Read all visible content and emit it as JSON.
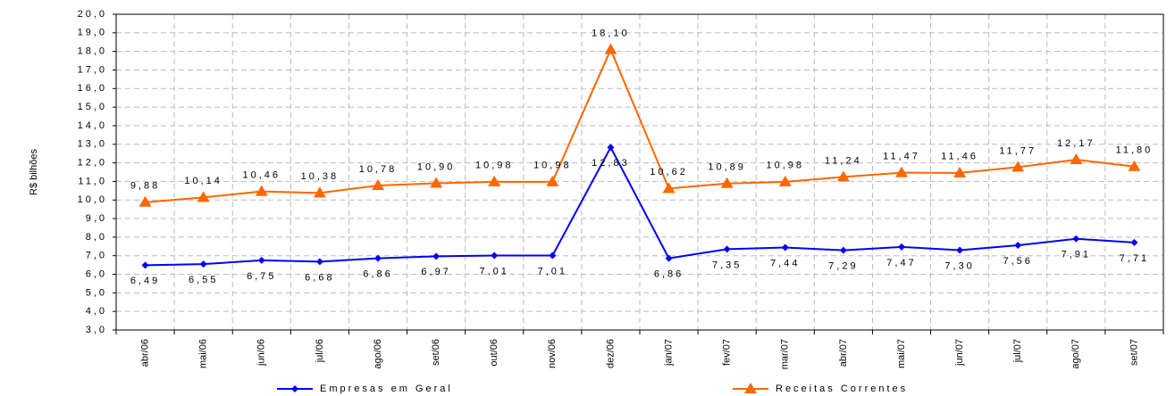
{
  "chart_data": {
    "type": "line",
    "y_label": "R$ bilhões",
    "categories": [
      "abr/06",
      "mai/06",
      "jun/06",
      "jul/06",
      "ago/06",
      "set/06",
      "out/06",
      "nov/06",
      "dez/06",
      "jan/07",
      "fev/07",
      "mar/07",
      "abr/07",
      "mai/07",
      "jun/07",
      "jul/07",
      "ago/07",
      "set/07"
    ],
    "series": [
      {
        "name": "Empresas em Geral",
        "color": "#0000ff",
        "marker": "diamond",
        "values": [
          6.49,
          6.55,
          6.75,
          6.68,
          6.86,
          6.97,
          7.01,
          7.01,
          12.83,
          6.86,
          7.35,
          7.44,
          7.29,
          7.47,
          7.3,
          7.56,
          7.91,
          7.71
        ],
        "value_labels": [
          "6,49",
          "6,55",
          "6,75",
          "6,68",
          "6,86",
          "6,97",
          "7,01",
          "7,01",
          "12,83",
          "6,86",
          "7,35",
          "7,44",
          "7,29",
          "7,47",
          "7,30",
          "7,56",
          "7,91",
          "7,71"
        ]
      },
      {
        "name": "Receitas Correntes",
        "color": "#ff6600",
        "marker": "triangle",
        "values": [
          9.88,
          10.14,
          10.46,
          10.38,
          10.78,
          10.9,
          10.98,
          10.98,
          18.1,
          10.62,
          10.89,
          10.98,
          11.24,
          11.47,
          11.46,
          11.77,
          12.17,
          11.8
        ],
        "value_labels": [
          "9,88",
          "10,14",
          "10,46",
          "10,38",
          "10,78",
          "10,90",
          "10,98",
          "10,98",
          "18,10",
          "10,62",
          "10,89",
          "10,98",
          "11,24",
          "11,47",
          "11,46",
          "11,77",
          "12,17",
          "11,80"
        ]
      }
    ],
    "ylim": [
      3,
      20
    ],
    "yticks": [
      {
        "value": 3,
        "label": "3,0"
      },
      {
        "value": 4,
        "label": "4,0"
      },
      {
        "value": 5,
        "label": "5,0"
      },
      {
        "value": 6,
        "label": "6,0"
      },
      {
        "value": 7,
        "label": "7,0"
      },
      {
        "value": 8,
        "label": "8,0"
      },
      {
        "value": 9,
        "label": "9,0"
      },
      {
        "value": 10,
        "label": "10,0"
      },
      {
        "value": 11,
        "label": "11,0"
      },
      {
        "value": 12,
        "label": "12,0"
      },
      {
        "value": 13,
        "label": "13,0"
      },
      {
        "value": 14,
        "label": "14,0"
      },
      {
        "value": 15,
        "label": "15,0"
      },
      {
        "value": 16,
        "label": "16,0"
      },
      {
        "value": 17,
        "label": "17,0"
      },
      {
        "value": 18,
        "label": "18,0"
      },
      {
        "value": 19,
        "label": "19,0"
      },
      {
        "value": 20,
        "label": "20,0"
      }
    ],
    "grid": true,
    "legend": "bottom"
  }
}
